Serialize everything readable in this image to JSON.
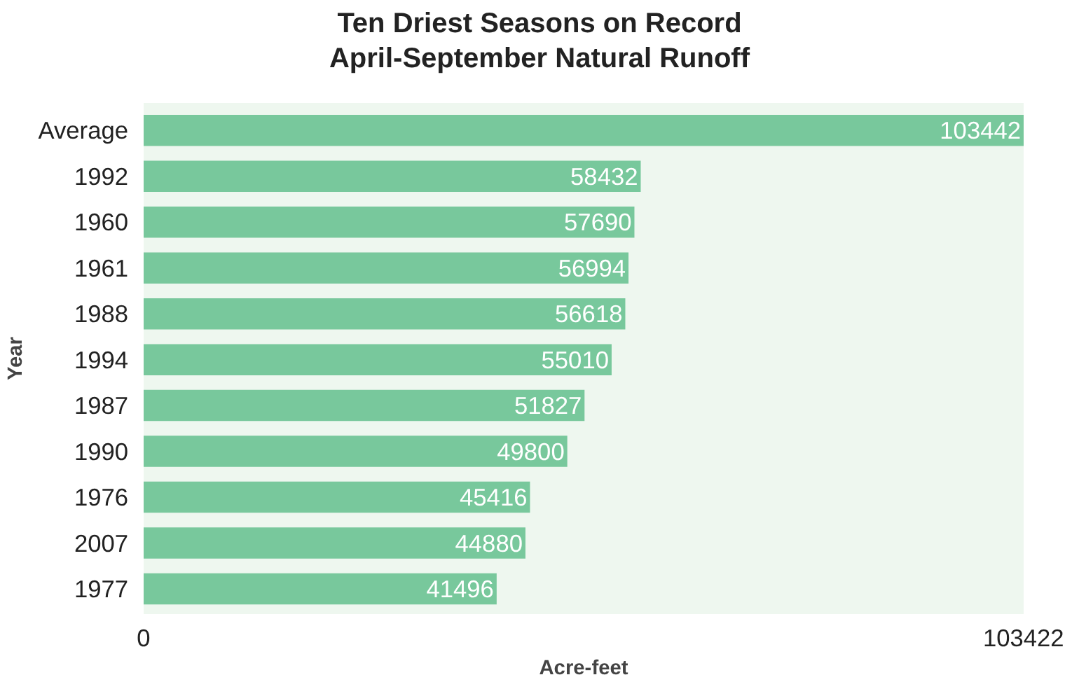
{
  "chart_data": {
    "type": "bar",
    "orientation": "horizontal",
    "title": "Ten Driest Seasons on Record\nApril-September Natural Runoff",
    "xlabel": "Acre-feet",
    "ylabel": "Year",
    "categories": [
      "Average",
      "1992",
      "1960",
      "1961",
      "1988",
      "1994",
      "1987",
      "1990",
      "1976",
      "2007",
      "1977"
    ],
    "values": [
      103442,
      58432,
      57690,
      56994,
      56618,
      55010,
      51827,
      49800,
      45416,
      44880,
      41496
    ],
    "color": "#78c89c",
    "xlim": [
      0,
      103442
    ],
    "xticks": [
      0,
      103422
    ],
    "data_labels": true,
    "grid": false
  }
}
